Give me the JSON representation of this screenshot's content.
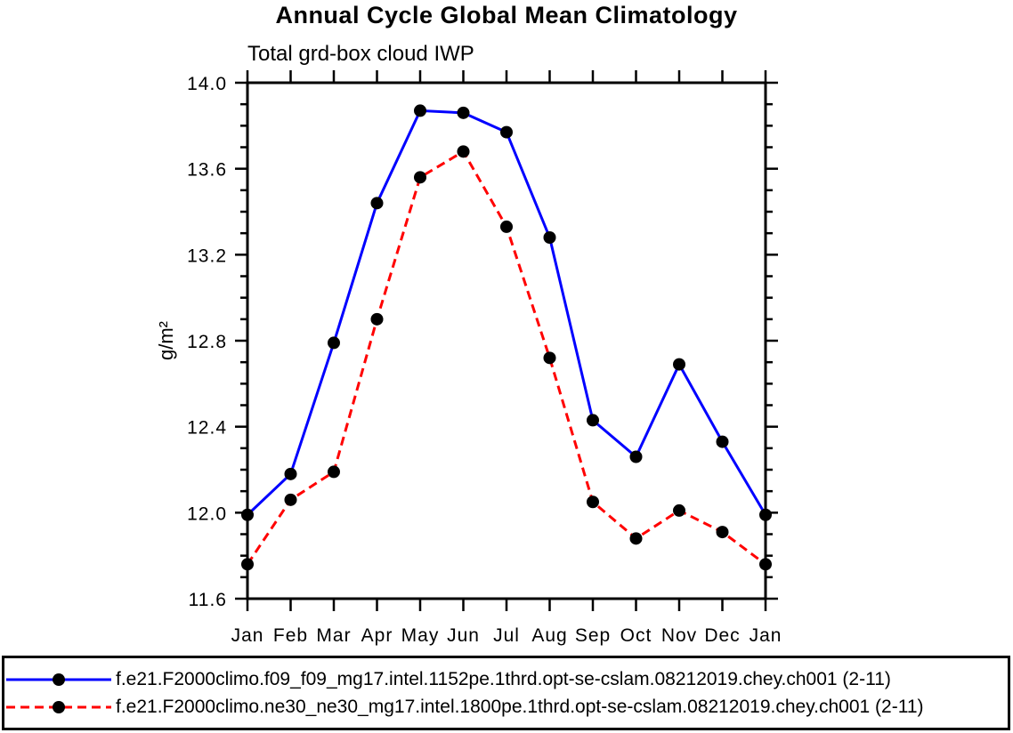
{
  "chart_data": {
    "type": "line",
    "title": "Annual Cycle Global Mean Climatology",
    "subtitle": "Total grd-box cloud IWP",
    "ylabel": "g/m²",
    "xlabel": "",
    "x": [
      "Jan",
      "Feb",
      "Mar",
      "Apr",
      "May",
      "Jun",
      "Jul",
      "Aug",
      "Sep",
      "Oct",
      "Nov",
      "Dec",
      "Jan"
    ],
    "ylim": [
      11.6,
      14.0
    ],
    "y_major_ticks": [
      11.6,
      12.0,
      12.4,
      12.8,
      13.2,
      13.6,
      14.0
    ],
    "y_major_tick_labels": [
      "11.6",
      "12.0",
      "12.4",
      "12.8",
      "13.2",
      "13.6",
      "14.0"
    ],
    "y_minor_step": 0.1,
    "grid": false,
    "legend_position": "bottom-outside",
    "axis_color": "#000000",
    "series": [
      {
        "name": "f.e21.F2000climo.f09_f09_mg17.intel.1152pe.1thrd.opt-se-cslam.08212019.chey.ch001 (2-11)",
        "color": "#0000ff",
        "line_style": "solid",
        "marker": "filled-circle",
        "marker_color": "#000000",
        "values": [
          11.99,
          12.18,
          12.79,
          13.44,
          13.87,
          13.86,
          13.77,
          13.28,
          12.43,
          12.26,
          12.69,
          12.33,
          11.99
        ]
      },
      {
        "name": "f.e21.F2000climo.ne30_ne30_mg17.intel.1800pe.1thrd.opt-se-cslam.08212019.chey.ch001 (2-11)",
        "color": "#ff0000",
        "line_style": "dashed",
        "marker": "filled-circle",
        "marker_color": "#000000",
        "values": [
          11.76,
          12.06,
          12.19,
          12.9,
          13.56,
          13.68,
          13.33,
          12.72,
          12.05,
          11.88,
          12.01,
          11.91,
          11.76
        ]
      }
    ]
  }
}
